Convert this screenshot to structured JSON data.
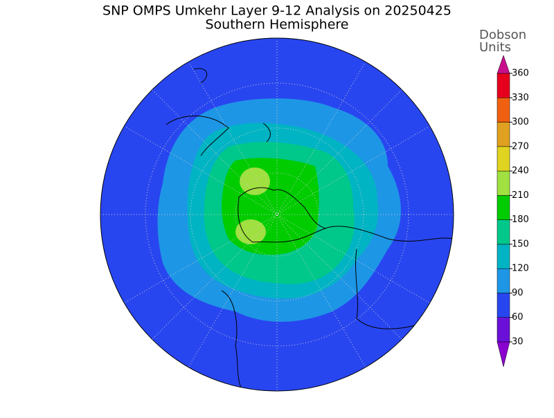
{
  "header": {
    "title": "SNP OMPS Umkehr Layer 9-12 Analysis on 20250425",
    "subtitle": "Southern Hemisphere"
  },
  "colorbar": {
    "label_line1": "Dobson",
    "label_line2": "Units",
    "ticks": [
      30,
      60,
      90,
      120,
      150,
      180,
      210,
      240,
      270,
      300,
      330,
      360
    ],
    "colors": [
      "#8a00d0",
      "#6a10d8",
      "#2846f0",
      "#1e96e6",
      "#00b4c4",
      "#00c88a",
      "#00cc00",
      "#a0e040",
      "#e0d420",
      "#e0a020",
      "#f06010",
      "#e6001e",
      "#c8108c"
    ]
  }
}
